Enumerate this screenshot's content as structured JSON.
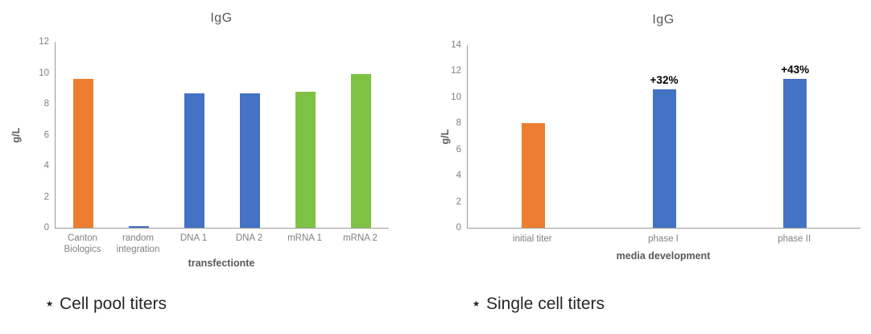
{
  "colors": {
    "orange": "#ED7D31",
    "blue": "#4472C4",
    "green": "#7DC242",
    "axis_line": "#9b9b9b",
    "tick_text": "#808080",
    "axis_title_text": "#595959",
    "chart_title_text": "#595959",
    "annotation_text": "#000000",
    "footnote_text": "#262626"
  },
  "footnotes": {
    "left": "⋆ Cell pool titers",
    "right": "⋆ Single cell titers"
  },
  "chart_data": [
    {
      "type": "bar",
      "title": "IgG",
      "xlabel": "transfectionte",
      "ylabel": "g/L",
      "ylim": [
        0,
        12
      ],
      "yticks": [
        0,
        2,
        4,
        6,
        8,
        10,
        12
      ],
      "grid": false,
      "legend": false,
      "categories": [
        "Canton Biologics",
        "random integration",
        "DNA 1",
        "DNA 2",
        "mRNA 1",
        "mRNA 2"
      ],
      "values": [
        9.6,
        0.1,
        8.7,
        8.7,
        8.8,
        9.9
      ],
      "bar_colors": [
        "orange",
        "blue",
        "blue",
        "blue",
        "green",
        "green"
      ],
      "annotations": [
        "",
        "",
        "",
        "",
        "",
        ""
      ]
    },
    {
      "type": "bar",
      "title": "IgG",
      "xlabel": "media development",
      "ylabel": "g/L",
      "ylim": [
        0,
        14
      ],
      "yticks": [
        0,
        2,
        4,
        6,
        8,
        10,
        12,
        14
      ],
      "grid": false,
      "legend": false,
      "categories": [
        "initial titer",
        "phase I",
        "phase II"
      ],
      "values": [
        8.0,
        10.6,
        11.4
      ],
      "bar_colors": [
        "orange",
        "blue",
        "blue"
      ],
      "annotations": [
        "",
        "+32%",
        "+43%"
      ]
    }
  ]
}
